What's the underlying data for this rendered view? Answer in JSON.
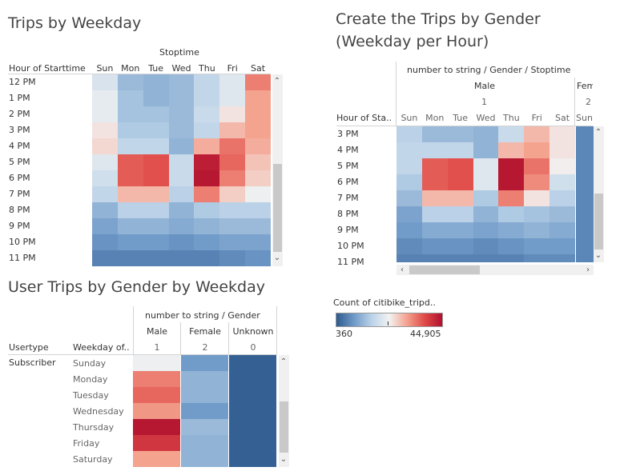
{
  "weekday_panel": {
    "title": "Trips by Weekday",
    "col_group_title": "Stoptime",
    "row_header": "Hour of Starttime",
    "days": [
      "Sun",
      "Mon",
      "Tue",
      "Wed",
      "Thu",
      "Fri",
      "Sat"
    ],
    "hours": [
      "12 PM",
      "1 PM",
      "2 PM",
      "3 PM",
      "4 PM",
      "5 PM",
      "6 PM",
      "7 PM",
      "8 PM",
      "9 PM",
      "10 PM",
      "11 PM"
    ]
  },
  "gender_hour_panel": {
    "title_line1": "Create the Trips by Gender",
    "title_line2": "(Weekday per Hour)",
    "col_header": "number to string / Gender / Stoptime",
    "gender_label": "Male",
    "gender_code": "1",
    "next_gender_label": "Fem",
    "next_gender_code": "2",
    "row_header": "Hour of Sta..",
    "days": [
      "Sun",
      "Mon",
      "Tue",
      "Wed",
      "Thu",
      "Fri",
      "Sat"
    ],
    "next_day": "Sun",
    "hours": [
      "3 PM",
      "4 PM",
      "5 PM",
      "6 PM",
      "7 PM",
      "8 PM",
      "9 PM",
      "10 PM",
      "11 PM"
    ]
  },
  "user_panel": {
    "title": "User Trips by Gender by Weekday",
    "col_header": "number to string / Gender",
    "row_header_1": "Usertype",
    "row_header_2": "Weekday of..",
    "usertype": "Subscriber",
    "genders": [
      {
        "label": "Male",
        "code": "1"
      },
      {
        "label": "Female",
        "code": "2"
      },
      {
        "label": "Unknown",
        "code": "0"
      }
    ],
    "weekdays": [
      "Sunday",
      "Monday",
      "Tuesday",
      "Wednesday",
      "Thursday",
      "Friday",
      "Saturday"
    ]
  },
  "legend": {
    "title": "Count of citibike_tripd..",
    "min_label": "360",
    "max_label": "44,905",
    "colors": [
      "#2f5b8f",
      "#6f9ac8",
      "#bcd3e8",
      "#f2f2f2",
      "#f4a28e",
      "#e04a48",
      "#b0102e"
    ]
  },
  "chart_data": [
    {
      "type": "heatmap",
      "title": "Trips by Weekday",
      "x": [
        "Sun",
        "Mon",
        "Tue",
        "Wed",
        "Thu",
        "Fri",
        "Sat"
      ],
      "y": [
        "12 PM",
        "1 PM",
        "2 PM",
        "3 PM",
        "4 PM",
        "5 PM",
        "6 PM",
        "7 PM",
        "8 PM",
        "9 PM",
        "10 PM",
        "11 PM"
      ],
      "xlabel": "Stoptime",
      "ylabel": "Hour of Starttime",
      "values": [
        [
          19000,
          12000,
          11000,
          12000,
          16000,
          20000,
          33000
        ],
        [
          21000,
          13000,
          11000,
          12000,
          16000,
          20000,
          30000
        ],
        [
          21000,
          13000,
          13000,
          12000,
          17000,
          24000,
          30000
        ],
        [
          24000,
          14000,
          14000,
          12000,
          16000,
          28000,
          30000
        ],
        [
          25000,
          16000,
          16000,
          11000,
          29000,
          34000,
          29000
        ],
        [
          20000,
          36000,
          37000,
          17000,
          43000,
          35000,
          27000
        ],
        [
          18000,
          36000,
          37000,
          17000,
          44000,
          33000,
          26000
        ],
        [
          16000,
          28000,
          28000,
          15000,
          33000,
          26000,
          22000
        ],
        [
          11000,
          15000,
          15000,
          11000,
          14000,
          15000,
          15000
        ],
        [
          9000,
          11000,
          11000,
          10000,
          11000,
          12000,
          12000
        ],
        [
          7000,
          8000,
          8000,
          7000,
          8000,
          9000,
          9000
        ],
        [
          5000,
          5000,
          5000,
          5000,
          5000,
          6000,
          7000
        ]
      ],
      "color_range": [
        360,
        44905
      ]
    },
    {
      "type": "heatmap",
      "title": "Create the Trips by Gender (Weekday per Hour)",
      "x": [
        "Sun",
        "Mon",
        "Tue",
        "Wed",
        "Thu",
        "Fri",
        "Sat"
      ],
      "y": [
        "3 PM",
        "4 PM",
        "5 PM",
        "6 PM",
        "7 PM",
        "8 PM",
        "9 PM",
        "10 PM",
        "11 PM"
      ],
      "xlabel": "number to string / Gender / Stoptime",
      "ylabel": "Hour of Sta..",
      "values": [
        [
          15000,
          12000,
          12000,
          11000,
          17000,
          28000,
          24000
        ],
        [
          16000,
          16000,
          16000,
          11000,
          28000,
          30000,
          24000
        ],
        [
          16000,
          36000,
          37000,
          20000,
          44000,
          34000,
          23000
        ],
        [
          14000,
          36000,
          37000,
          20000,
          44000,
          32000,
          18000
        ],
        [
          12000,
          28000,
          28000,
          14000,
          33000,
          24000,
          15000
        ],
        [
          9000,
          15000,
          15000,
          11000,
          14000,
          13000,
          12000
        ],
        [
          8000,
          10000,
          10000,
          9000,
          10000,
          11000,
          10000
        ],
        [
          6000,
          7000,
          7000,
          6000,
          7000,
          8000,
          8000
        ],
        [
          5000,
          5000,
          5000,
          5000,
          5000,
          6000,
          6000
        ]
      ],
      "color_range": [
        360,
        44905
      ]
    },
    {
      "type": "heatmap",
      "title": "User Trips by Gender by Weekday",
      "x": [
        "Male",
        "Female",
        "Unknown"
      ],
      "y": [
        "Sunday",
        "Monday",
        "Tuesday",
        "Wednesday",
        "Thursday",
        "Friday",
        "Saturday"
      ],
      "xlabel": "number to string / Gender",
      "ylabel": "Weekday of..",
      "values": [
        [
          22000,
          8000,
          1000
        ],
        [
          33000,
          11000,
          1000
        ],
        [
          35000,
          11000,
          1000
        ],
        [
          31000,
          8000,
          1000
        ],
        [
          44000,
          12000,
          1000
        ],
        [
          40000,
          11000,
          1000
        ],
        [
          30000,
          11000,
          1000
        ]
      ],
      "color_range": [
        360,
        44905
      ]
    }
  ]
}
